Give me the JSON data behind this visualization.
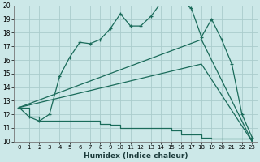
{
  "xlabel": "Humidex (Indice chaleur)",
  "bg_color": "#cce8e8",
  "grid_color": "#aacccc",
  "line_color": "#1a6b5a",
  "xlim": [
    -0.5,
    23.5
  ],
  "ylim": [
    10,
    20
  ],
  "xticks": [
    0,
    1,
    2,
    3,
    4,
    5,
    6,
    7,
    8,
    9,
    10,
    11,
    12,
    13,
    14,
    15,
    16,
    17,
    18,
    19,
    20,
    21,
    22,
    23
  ],
  "yticks": [
    10,
    11,
    12,
    13,
    14,
    15,
    16,
    17,
    18,
    19,
    20
  ],
  "series1_x": [
    0,
    1,
    2,
    3,
    4,
    5,
    6,
    7,
    8,
    9,
    10,
    11,
    12,
    13,
    14,
    15,
    16,
    17,
    18,
    19,
    20,
    21,
    22,
    23
  ],
  "series1_y": [
    12.5,
    11.8,
    11.5,
    12.0,
    14.8,
    16.2,
    17.3,
    17.2,
    17.5,
    18.3,
    19.4,
    18.5,
    18.5,
    19.2,
    20.2,
    20.3,
    20.3,
    19.8,
    17.7,
    19.0,
    17.5,
    15.7,
    12.0,
    10.3
  ],
  "series2_x": [
    0,
    1,
    2,
    3,
    4,
    5,
    6,
    7,
    8,
    9,
    10,
    11,
    12,
    13,
    14,
    15,
    16,
    17,
    18,
    19,
    20,
    21,
    22,
    23
  ],
  "series2_y": [
    12.5,
    11.8,
    11.5,
    11.5,
    11.5,
    11.5,
    11.5,
    11.5,
    11.3,
    11.2,
    11.0,
    11.0,
    11.0,
    11.0,
    11.0,
    10.8,
    10.5,
    10.5,
    10.3,
    10.2,
    10.2,
    10.2,
    10.2,
    10.0
  ],
  "series3_x": [
    0,
    18,
    23
  ],
  "series3_y": [
    12.5,
    15.7,
    10.0
  ],
  "series4_x": [
    0,
    18,
    23
  ],
  "series4_y": [
    12.5,
    17.5,
    10.0
  ]
}
